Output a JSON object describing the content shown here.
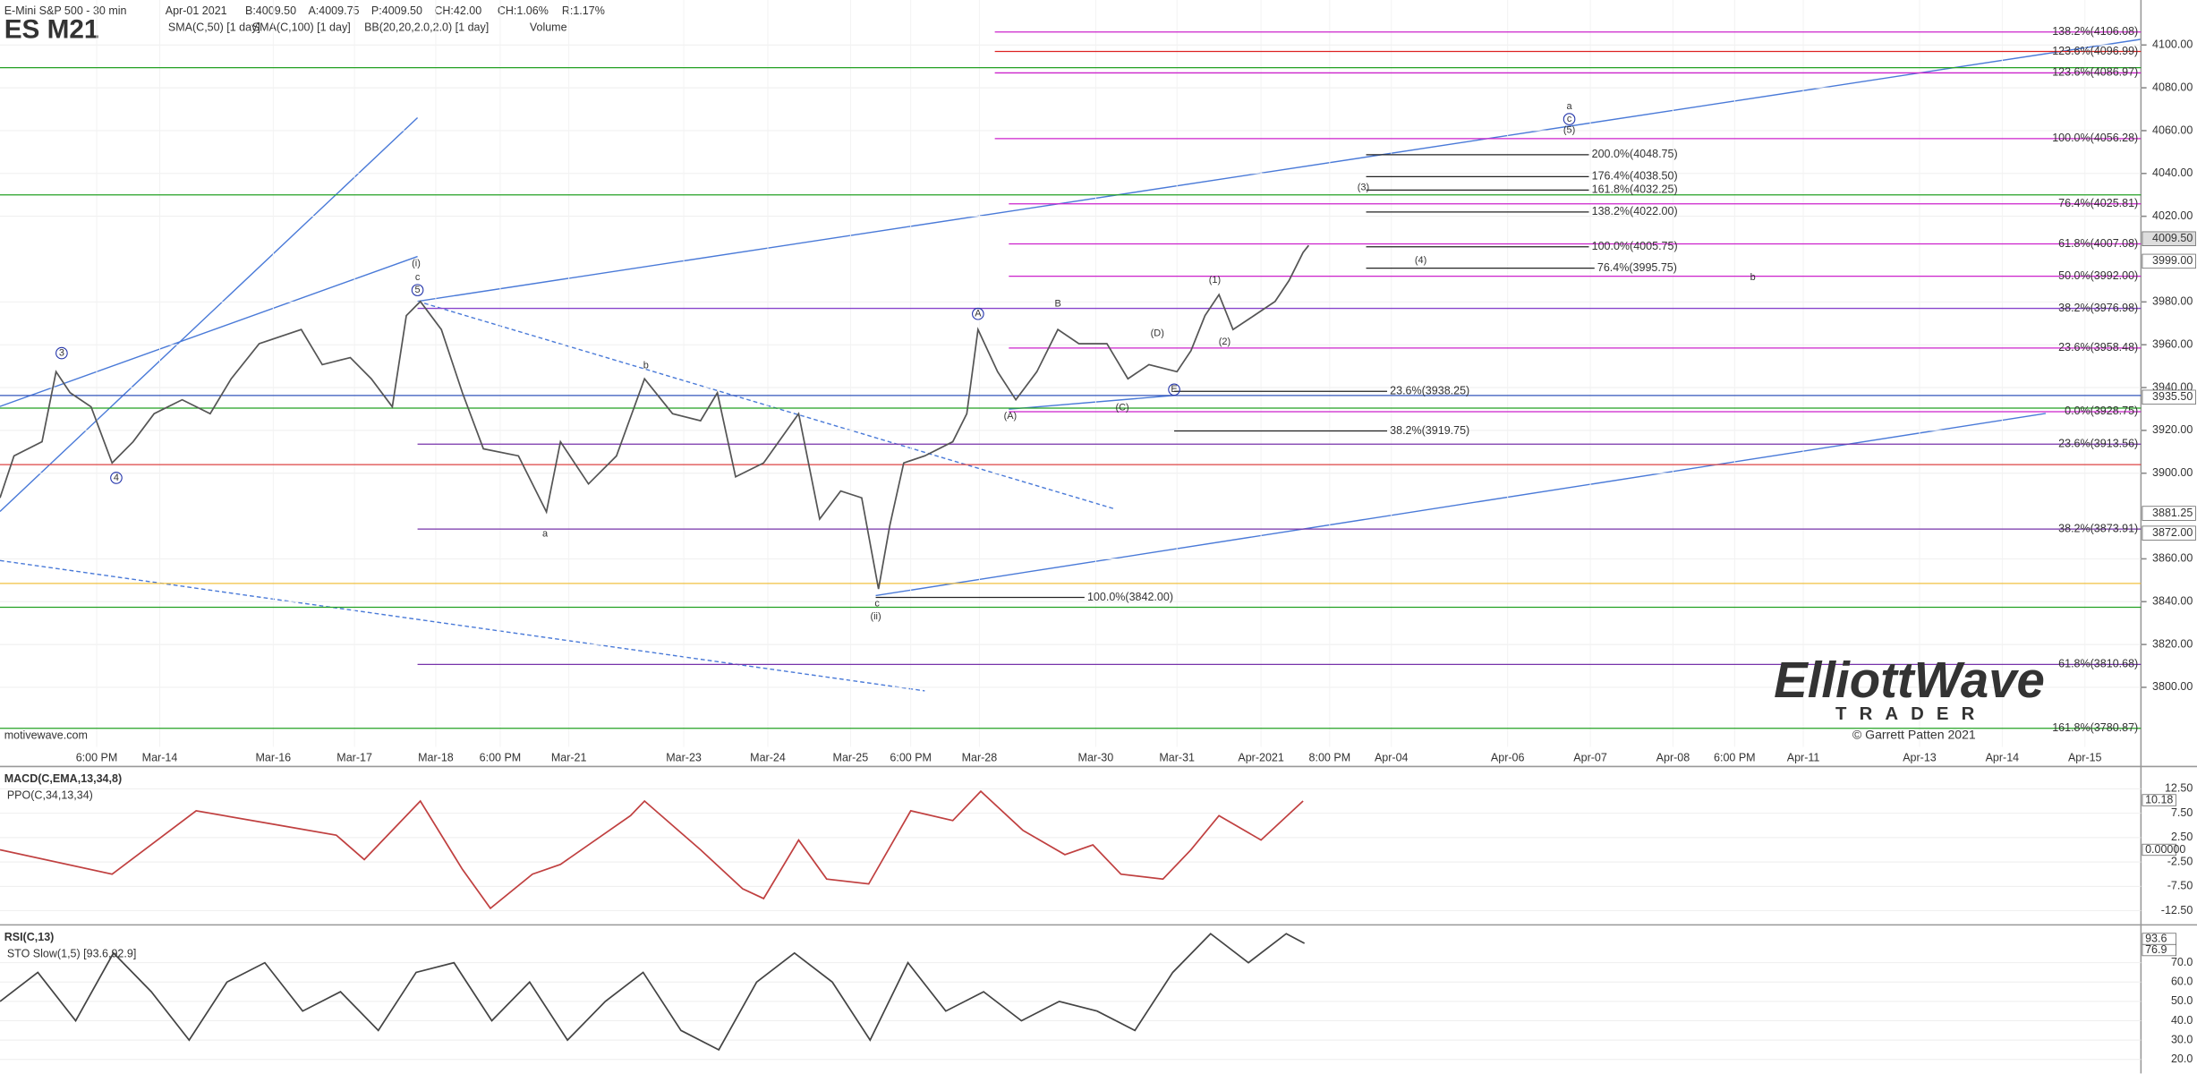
{
  "header": {
    "instrument": "E-Mini S&P 500 - 30 min",
    "date": "Apr-01 2021",
    "bid": "B:4009.50",
    "ask": "A:4009.75",
    "price": "P:4009.50",
    "change": "CH:42.00",
    "change_pct": "CH:1.06%",
    "range": "R:1.17%",
    "symbol": "ES M21",
    "studies": [
      "SMA(C,50) [1 day]",
      "SMA(C,100) [1 day]",
      "BB(20,20,2.0,2.0) [1 day]",
      "Volume"
    ]
  },
  "chart_data": [
    {
      "type": "line",
      "color": "#555555",
      "x": [
        0,
        10,
        30,
        40,
        50,
        65,
        80,
        95,
        110,
        130,
        150,
        165,
        185,
        200,
        215,
        230,
        250,
        265,
        280,
        290,
        300,
        315,
        330,
        345,
        370,
        390,
        400,
        420,
        440,
        460,
        480,
        500,
        512,
        525,
        545,
        570,
        585,
        600,
        615,
        627,
        635,
        645,
        660,
        680,
        690,
        698,
        712,
        725,
        740,
        755,
        770,
        790,
        805,
        820,
        840,
        850,
        860,
        870,
        880,
        895,
        910,
        920,
        930,
        934
      ],
      "values": [
        3888.5,
        3908.1,
        3914.7,
        3947.4,
        3937.6,
        3931.0,
        3904.8,
        3914.7,
        3927.8,
        3934.3,
        3927.8,
        3944.1,
        3960.5,
        3963.8,
        3967.1,
        3950.7,
        3954.0,
        3944.1,
        3931.0,
        3973.6,
        3980.2,
        3967.1,
        3937.6,
        3911.4,
        3908.1,
        3881.9,
        3914.7,
        3895.0,
        3908.1,
        3944.1,
        3927.8,
        3924.5,
        3937.6,
        3898.3,
        3904.8,
        3927.8,
        3878.6,
        3891.7,
        3888.5,
        3845.9,
        3875.4,
        3904.8,
        3908.1,
        3914.7,
        3927.8,
        3967.1,
        3947.4,
        3934.3,
        3947.4,
        3967.1,
        3960.5,
        3960.5,
        3944.1,
        3950.7,
        3947.4,
        3957.2,
        3973.6,
        3983.4,
        3967.1,
        3973.6,
        3980.2,
        3990.0,
        4003.1,
        4006.4
      ],
      "xlim": [
        0,
        1528
      ],
      "xticks": [
        {
          "value": 69,
          "label": "6:00 PM"
        },
        {
          "value": 114,
          "label": "Mar-14"
        },
        {
          "value": 195,
          "label": "Mar-16"
        },
        {
          "value": 253,
          "label": "Mar-17"
        },
        {
          "value": 311,
          "label": "Mar-18"
        },
        {
          "value": 357,
          "label": "6:00 PM"
        },
        {
          "value": 406,
          "label": "Mar-21"
        },
        {
          "value": 488,
          "label": "Mar-23"
        },
        {
          "value": 548,
          "label": "Mar-24"
        },
        {
          "value": 607,
          "label": "Mar-25"
        },
        {
          "value": 650,
          "label": "6:00 PM"
        },
        {
          "value": 699,
          "label": "Mar-28"
        },
        {
          "value": 782,
          "label": "Mar-30"
        },
        {
          "value": 840,
          "label": "Mar-31"
        },
        {
          "value": 900,
          "label": "Apr-2021"
        },
        {
          "value": 949,
          "label": "8:00 PM"
        },
        {
          "value": 993,
          "label": "Apr-04"
        },
        {
          "value": 1076,
          "label": "Apr-06"
        },
        {
          "value": 1135,
          "label": "Apr-07"
        },
        {
          "value": 1194,
          "label": "Apr-08"
        },
        {
          "value": 1238,
          "label": "6:00 PM"
        },
        {
          "value": 1287,
          "label": "Apr-11"
        },
        {
          "value": 1370,
          "label": "Apr-13"
        },
        {
          "value": 1429,
          "label": "Apr-14"
        },
        {
          "value": 1488,
          "label": "Apr-15"
        }
      ],
      "ylim": [
        3763,
        4121
      ],
      "yticks": [
        {
          "value": 3800,
          "label": "3800.00"
        },
        {
          "value": 3820,
          "label": "3820.00"
        },
        {
          "value": 3840,
          "label": "3840.00"
        },
        {
          "value": 3860,
          "label": "3860.00"
        },
        {
          "value": 3900,
          "label": "3900.00"
        },
        {
          "value": 3920,
          "label": "3920.00"
        },
        {
          "value": 3940,
          "label": "3940.00"
        },
        {
          "value": 3960,
          "label": "3960.00"
        },
        {
          "value": 3980,
          "label": "3980.00"
        },
        {
          "value": 4020,
          "label": "4020.00"
        },
        {
          "value": 4040,
          "label": "4040.00"
        },
        {
          "value": 4060,
          "label": "4060.00"
        },
        {
          "value": 4080,
          "label": "4080.00"
        },
        {
          "value": 4100,
          "label": "4100.00"
        }
      ],
      "reference_lines": [
        {
          "value": 4089.4,
          "color": "#22a022"
        },
        {
          "value": 4030.0,
          "color": "#22a022"
        },
        {
          "value": 3936.3,
          "color": "#3355bb"
        },
        {
          "value": 3930.4,
          "color": "#22a022"
        },
        {
          "value": 3904.0,
          "color": "#dd4444"
        },
        {
          "value": 3848.5,
          "color": "#f0c040"
        },
        {
          "value": 3837.4,
          "color": "#22a022"
        }
      ],
      "levels": [
        {
          "value": 4106.08,
          "label": "138.2%(4106.08)",
          "color": "#cc22cc",
          "from": 710
        },
        {
          "value": 4096.99,
          "label": "123.6%(4096.99)",
          "color": "#dd2222",
          "from": 710
        },
        {
          "value": 4086.97,
          "label": "123.6%(4086.97)",
          "color": "#cc22cc",
          "from": 710
        },
        {
          "value": 4056.28,
          "label": "100.0%(4056.28)",
          "color": "#cc22cc",
          "from": 710
        },
        {
          "value": 4025.81,
          "label": "76.4%(4025.81)",
          "color": "#cc22cc",
          "from": 720
        },
        {
          "value": 4007.08,
          "label": "61.8%(4007.08)",
          "color": "#cc22cc",
          "from": 720
        },
        {
          "value": 3992.0,
          "label": "50.0%(3992.00)",
          "color": "#cc22cc",
          "from": 720
        },
        {
          "value": 3976.98,
          "label": "38.2%(3976.98)",
          "color": "#8844cc",
          "from": 298
        },
        {
          "value": 3958.48,
          "label": "23.6%(3958.48)",
          "color": "#cc22cc",
          "from": 720
        },
        {
          "value": 3928.75,
          "label": "0.0%(3928.75)",
          "color": "#cc22cc",
          "from": 720
        },
        {
          "value": 3913.56,
          "label": "23.6%(3913.56)",
          "color": "#7733aa",
          "from": 298
        },
        {
          "value": 3873.91,
          "label": "38.2%(3873.91)",
          "color": "#7733aa",
          "from": 298
        },
        {
          "value": 3810.68,
          "label": "61.8%(3810.68)",
          "color": "#7733aa",
          "from": 298
        },
        {
          "value": 3780.87,
          "label": "161.8%(3780.87)",
          "color": "#22a022",
          "from": 0
        }
      ],
      "targets": [
        {
          "value": 4048.75,
          "label": "200.0%(4048.75)",
          "from": 975,
          "to": 1134
        },
        {
          "value": 4038.5,
          "label": "176.4%(4038.50)",
          "from": 975,
          "to": 1134
        },
        {
          "value": 4032.25,
          "label": "161.8%(4032.25)",
          "from": 975,
          "to": 1134
        },
        {
          "value": 4022.0,
          "label": "138.2%(4022.00)",
          "from": 975,
          "to": 1134
        },
        {
          "value": 4005.75,
          "label": "100.0%(4005.75)",
          "from": 975,
          "to": 1134
        },
        {
          "value": 3995.75,
          "label": "76.4%(3995.75)",
          "from": 975,
          "to": 1138
        },
        {
          "value": 3938.25,
          "label": "23.6%(3938.25)",
          "from": 838,
          "to": 990
        },
        {
          "value": 3919.75,
          "label": "38.2%(3919.75)",
          "from": 838,
          "to": 990
        },
        {
          "value": 3842.0,
          "label": "100.0%(3842.00)",
          "from": 625,
          "to": 774
        }
      ],
      "price_tags": [
        {
          "value": 4009.5,
          "label": "4009.50"
        },
        {
          "value": 3999.0,
          "label": "3999.00"
        },
        {
          "value": 3935.5,
          "label": "3935.50"
        },
        {
          "value": 3881.25,
          "label": "3881.25"
        },
        {
          "value": 3872.0,
          "label": "3872.00"
        }
      ],
      "wave_labels": [
        "3",
        "4",
        "5",
        "c",
        "(i)",
        "a",
        "b",
        "c",
        "(ii)",
        "A",
        "B",
        "(A)",
        "(C)",
        "(D)",
        "E",
        "(1)",
        "(2)",
        "(3)",
        "(4)",
        "a",
        "c",
        "(5)",
        "b"
      ],
      "watermark": "motivewave.com",
      "logo": {
        "name": "ElliottWave",
        "sub": "TRADER",
        "credit": "© Garrett Patten 2021"
      }
    },
    {
      "type": "line",
      "title": "MACD(C,EMA,13,34,8)",
      "subtitle": "PPO(C,34,13,34)",
      "color": "#c04040",
      "x": [
        0,
        80,
        140,
        200,
        240,
        260,
        300,
        330,
        350,
        380,
        400,
        450,
        460,
        500,
        530,
        545,
        570,
        590,
        620,
        650,
        680,
        700,
        730,
        760,
        780,
        800,
        830,
        850,
        870,
        900,
        930
      ],
      "values": [
        0,
        -5,
        8,
        5,
        3,
        -2,
        10,
        -4,
        -12,
        -5,
        -3,
        7,
        10,
        0,
        -8,
        -10,
        2,
        -6,
        -7,
        8,
        6,
        12,
        4,
        -1,
        1,
        -5,
        -6,
        0,
        7,
        2,
        10
      ],
      "ylim": [
        -15.4,
        16.5
      ],
      "yticks": [
        {
          "value": 12.5,
          "label": "12.50"
        },
        {
          "value": 7.5,
          "label": "7.50"
        },
        {
          "value": 2.5,
          "label": "2.50"
        },
        {
          "value": -2.5,
          "label": "-2.50"
        },
        {
          "value": -7.5,
          "label": "-7.50"
        },
        {
          "value": -12.5,
          "label": "-12.50"
        }
      ],
      "tags": [
        "10.18",
        "0.00000"
      ]
    },
    {
      "type": "line",
      "title": "RSI(C,13)",
      "subtitle": "STO Slow(1,5) [93.6,92.9]",
      "color": "#444444",
      "x": [
        0,
        27,
        54,
        81,
        108,
        135,
        162,
        189,
        216,
        243,
        270,
        297,
        324,
        351,
        378,
        405,
        432,
        459,
        486,
        513,
        540,
        567,
        594,
        621,
        648,
        675,
        702,
        729,
        756,
        783,
        810,
        837,
        864,
        891,
        918,
        931
      ],
      "values": [
        50,
        65,
        40,
        75,
        55,
        30,
        60,
        70,
        45,
        55,
        35,
        65,
        70,
        40,
        60,
        30,
        50,
        65,
        35,
        25,
        60,
        75,
        60,
        30,
        70,
        45,
        55,
        40,
        50,
        45,
        35,
        65,
        85,
        70,
        85,
        80
      ],
      "ylim": [
        12.8,
        88.1
      ],
      "yticks": [
        {
          "value": 70,
          "label": "70.0"
        },
        {
          "value": 60,
          "label": "60.0"
        },
        {
          "value": 50,
          "label": "50.0"
        },
        {
          "value": 40,
          "label": "40.0"
        },
        {
          "value": 30,
          "label": "30.0"
        },
        {
          "value": 20,
          "label": "20.0"
        }
      ],
      "tags": [
        "93.6",
        "76.9"
      ]
    }
  ]
}
